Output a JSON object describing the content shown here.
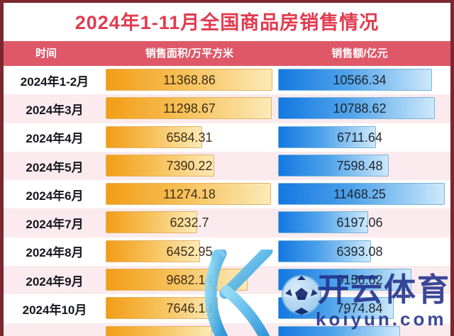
{
  "title": "2024年1-11月全国商品房销售情况",
  "columns": {
    "time": "时间",
    "area": "销售面积/万平方米",
    "amount": "销售额/亿元"
  },
  "rows": [
    {
      "label": "2024年1-2月",
      "area": "11368.86",
      "amount": "10566.34"
    },
    {
      "label": "2024年3月",
      "area": "11298.67",
      "amount": "10788.62"
    },
    {
      "label": "2024年4月",
      "area": "6584.31",
      "amount": "6711.64"
    },
    {
      "label": "2024年5月",
      "area": "7390.22",
      "amount": "7598.48"
    },
    {
      "label": "2024年6月",
      "area": "11274.18",
      "amount": "11468.25"
    },
    {
      "label": "2024年7月",
      "area": "6232.7",
      "amount": "6197.06"
    },
    {
      "label": "2024年8月",
      "area": "6452.95",
      "amount": "6393.08"
    },
    {
      "label": "2024年9月",
      "area": "9682.14",
      "amount": "9156.62"
    },
    {
      "label": "2024年10月",
      "area": "7646.13",
      "amount": "7974.84"
    },
    {
      "label": "",
      "area": null,
      "amount": null,
      "partial": true
    }
  ],
  "watermark": {
    "brand": "开云体育",
    "domain": "koiyun.com",
    "logo": "kaiyun-k-football-logo"
  },
  "colors": {
    "frame_border": "#7c272e",
    "title_red": "#e23b4f",
    "header_bg": "#df5868",
    "row_alt_pink": "#fbebee",
    "bar_orange": "#f29d17",
    "bar_blue": "#1478e2",
    "watermark_navy": "#20308a"
  },
  "chart_data": {
    "type": "bar",
    "orientation": "horizontal",
    "title": "2024年1-11月全国商品房销售情况",
    "categories": [
      "2024年1-2月",
      "2024年3月",
      "2024年4月",
      "2024年5月",
      "2024年6月",
      "2024年7月",
      "2024年8月",
      "2024年9月",
      "2024年10月"
    ],
    "series": [
      {
        "name": "销售面积/万平方米",
        "color": "#f29d17",
        "values": [
          11368.86,
          11298.67,
          6584.31,
          7390.22,
          11274.18,
          6232.7,
          6452.95,
          9682.14,
          7646.13
        ]
      },
      {
        "name": "销售额/亿元",
        "color": "#1478e2",
        "values": [
          10566.34,
          10788.62,
          6711.64,
          7598.48,
          11468.25,
          6197.06,
          6393.08,
          9156.62,
          7974.84
        ]
      }
    ],
    "xlim": [
      0,
      11500
    ],
    "grid": false,
    "legend_position": "none"
  }
}
